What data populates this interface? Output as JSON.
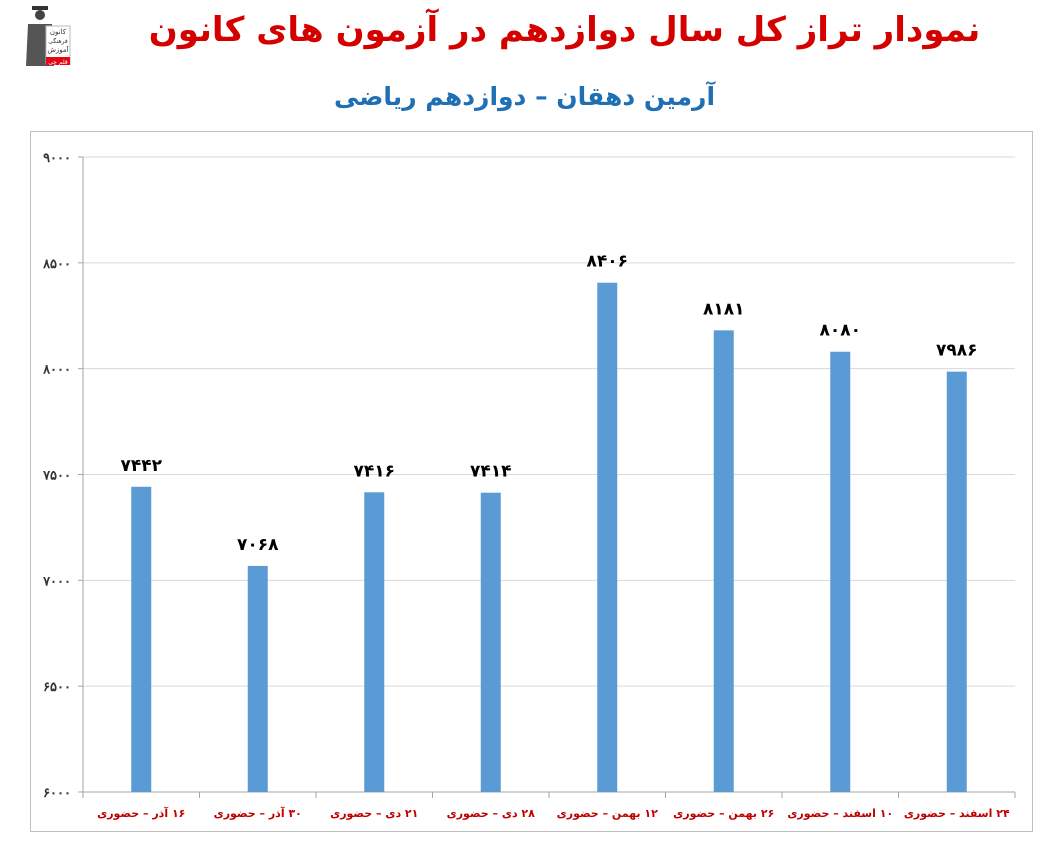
{
  "header": {
    "title": "نمودار تراز کل سال دوازدهم در آزمون های کانون",
    "subtitle": "آرمین دهقان – دوازدهم ریاضی",
    "logo_lines": [
      "کانون",
      "فرهنگی",
      "آموزش",
      "قلم چی"
    ]
  },
  "colors": {
    "bar": "#5b9bd5",
    "title": "#d40000",
    "subtitle": "#1f6fb5",
    "category_label": "#c00000",
    "grid": "#d9d9d9"
  },
  "chart_data": {
    "type": "bar",
    "title": "نمودار تراز کل سال دوازدهم در آزمون های کانون",
    "subtitle": "آرمین دهقان – دوازدهم ریاضی",
    "categories": [
      "۱۶ آذر – حضوری",
      "۳۰ آذر – حضوری",
      "۲۱ دی – حضوری",
      "۲۸ دی – حضوری",
      "۱۲ بهمن – حضوری",
      "۲۶ بهمن – حضوری",
      "۱۰ اسفند – حضوری",
      "۲۴ اسفند – حضوری"
    ],
    "values": [
      7442,
      7068,
      7416,
      7414,
      8406,
      8181,
      8080,
      7986
    ],
    "value_labels": [
      "۷۴۴۲",
      "۷۰۶۸",
      "۷۴۱۶",
      "۷۴۱۴",
      "۸۴۰۶",
      "۸۱۸۱",
      "۸۰۸۰",
      "۷۹۸۶"
    ],
    "ylim": [
      6000,
      9000
    ],
    "yticks": [
      6000,
      6500,
      7000,
      7500,
      8000,
      8500,
      9000
    ],
    "ytick_labels": [
      "۶۰۰۰",
      "۶۵۰۰",
      "۷۰۰۰",
      "۷۵۰۰",
      "۸۰۰۰",
      "۸۵۰۰",
      "۹۰۰۰"
    ],
    "xlabel": "",
    "ylabel": "",
    "grid": true,
    "legend": "none"
  }
}
